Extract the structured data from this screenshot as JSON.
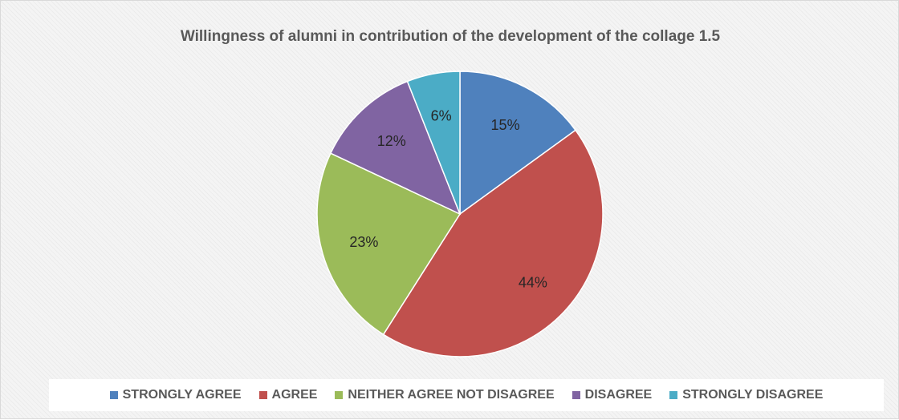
{
  "chart_data": {
    "type": "pie",
    "title": "Willingness of alumni in contribution of the development of the collage 1.5",
    "legend_position": "bottom",
    "slices": [
      {
        "name": "STRONGLY AGREE",
        "value": 15,
        "label": "15%",
        "color": "#4f81bd"
      },
      {
        "name": "AGREE",
        "value": 44,
        "label": "44%",
        "color": "#c0504d"
      },
      {
        "name": "NEITHER AGREE NOT DISAGREE",
        "value": 23,
        "label": "23%",
        "color": "#9bbb59"
      },
      {
        "name": "DISAGREE",
        "value": 12,
        "label": "12%",
        "color": "#8064a2"
      },
      {
        "name": "STRONGLY DISAGREE",
        "value": 6,
        "label": "6%",
        "color": "#4bacc6"
      }
    ]
  }
}
